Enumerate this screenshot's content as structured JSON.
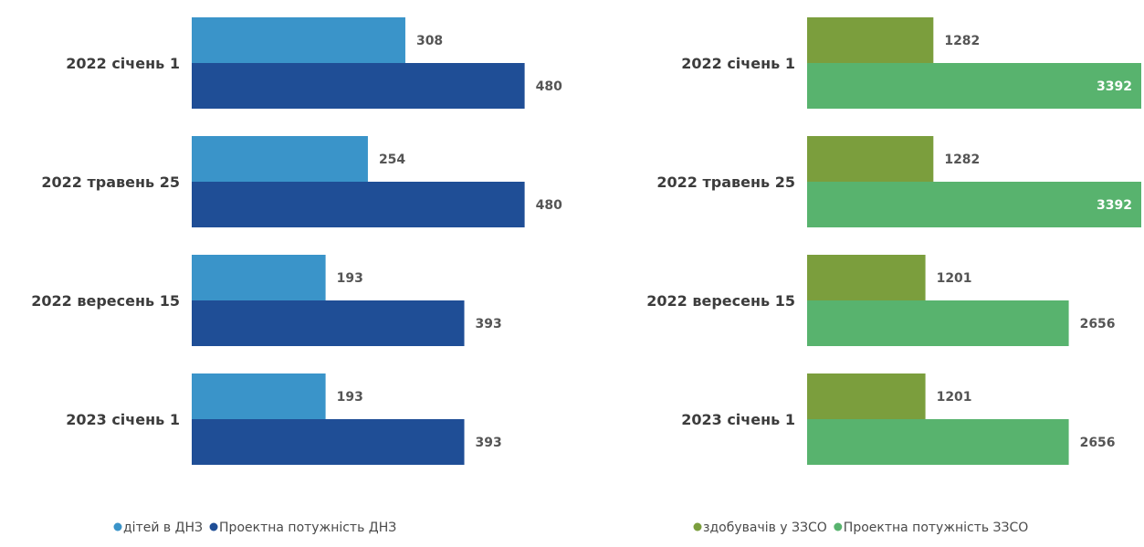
{
  "chart_data": [
    {
      "type": "bar",
      "orientation": "horizontal",
      "categories": [
        "2022 січень 1",
        "2022 травень 25",
        "2022 вересень 15",
        "2023 січень 1"
      ],
      "series": [
        {
          "name": "дітей в ДНЗ",
          "values": [
            308,
            254,
            193,
            193
          ],
          "color": "#3a94c9"
        },
        {
          "name": "Проектна потужність ДНЗ",
          "values": [
            480,
            480,
            393,
            393
          ],
          "color": "#1f4e96"
        }
      ],
      "xlim": [
        0,
        520
      ],
      "grid": false,
      "legend": "bottom"
    },
    {
      "type": "bar",
      "orientation": "horizontal",
      "categories": [
        "2022 січень 1",
        "2022 травень 25",
        "2022 вересень 15",
        "2023 січень 1"
      ],
      "series": [
        {
          "name": "здобувачів у ЗЗСО",
          "values": [
            1282,
            1282,
            1201,
            1201
          ],
          "color": "#7b9e3d"
        },
        {
          "name": "Проектна потужність ЗЗСО",
          "values": [
            3392,
            3392,
            2656,
            2656
          ],
          "color": "#58b36e"
        }
      ],
      "xlim": [
        0,
        3392
      ],
      "grid": false,
      "legend": "bottom"
    }
  ]
}
